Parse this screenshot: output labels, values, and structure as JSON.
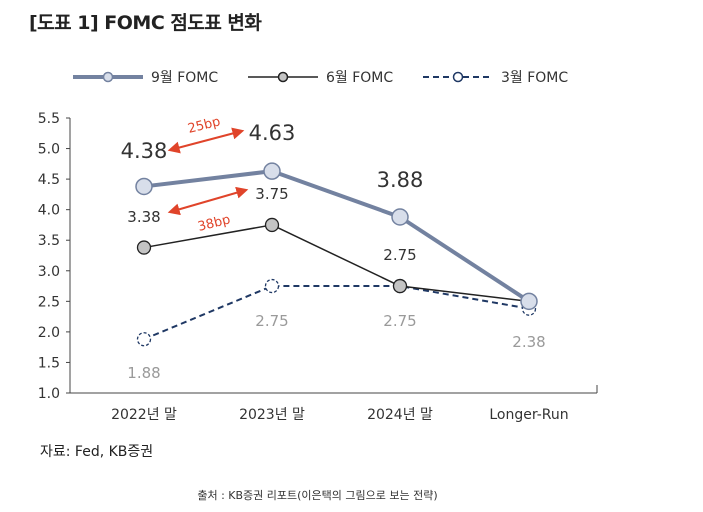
{
  "title": "[도표 1] FOMC 점도표 변화",
  "source": "자료: Fed, KB증권",
  "footnote": "출처 : KB증권 리포트(이은택의 그림으로 보는 전략)",
  "chart_data": {
    "type": "line",
    "categories": [
      "2022년 말",
      "2023년 말",
      "2024년 말",
      "Longer-Run"
    ],
    "ylim": [
      1.0,
      5.5
    ],
    "yticks": [
      "1.0",
      "1.5",
      "2.0",
      "2.5",
      "3.0",
      "3.5",
      "4.0",
      "4.5",
      "5.0",
      "5.5"
    ],
    "grid": false,
    "legend_position": "top",
    "series": [
      {
        "name": "9월 FOMC",
        "values": [
          4.38,
          4.63,
          3.88,
          2.5
        ],
        "labels": [
          "4.38",
          "4.63",
          "3.88",
          ""
        ],
        "color": "#7382a0",
        "style": "thick"
      },
      {
        "name": "6월 FOMC",
        "values": [
          3.38,
          3.75,
          2.75,
          2.5
        ],
        "labels": [
          "3.38",
          "3.75",
          "2.75",
          ""
        ],
        "color": "#222222",
        "style": "thin"
      },
      {
        "name": "3월 FOMC",
        "values": [
          1.88,
          2.75,
          2.75,
          2.38
        ],
        "labels": [
          "1.88",
          "2.75",
          "2.75",
          "2.38"
        ],
        "color": "#1f3864",
        "style": "dashed"
      }
    ],
    "annotations": [
      {
        "text": "25bp",
        "color": "#e0442a",
        "from": [
          0,
          4.38
        ],
        "to": [
          1,
          4.63
        ]
      },
      {
        "text": "38bp",
        "color": "#e0442a",
        "from": [
          0,
          3.38
        ],
        "to": [
          1,
          3.75
        ]
      }
    ]
  }
}
